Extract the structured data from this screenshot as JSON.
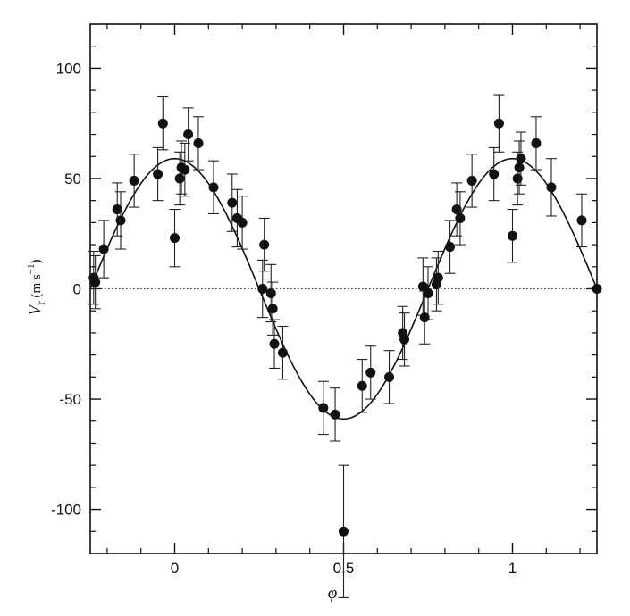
{
  "chart_data": {
    "type": "scatter",
    "title": "",
    "xlabel": "φ",
    "ylabel": {
      "symbol": "V",
      "subscript": "r",
      "unit_open": " (m s",
      "unit_exp": "−1",
      "unit_close": ")"
    },
    "xlim": [
      -0.25,
      1.25
    ],
    "ylim": [
      -120,
      120
    ],
    "x_ticks": [
      {
        "value": 0,
        "label": "0"
      },
      {
        "value": 0.5,
        "label": "0.5"
      },
      {
        "value": 1,
        "label": "1"
      }
    ],
    "y_ticks": [
      {
        "value": 100,
        "label": "100"
      },
      {
        "value": 50,
        "label": "50"
      },
      {
        "value": 0,
        "label": "0"
      },
      {
        "value": -50,
        "label": "-50"
      },
      {
        "value": -100,
        "label": "-100"
      }
    ],
    "grid": false,
    "reference_line": {
      "y": 0,
      "style": "dotted"
    },
    "fit_curve": {
      "amplitude": 59,
      "period": 1,
      "zero_phase": 0.25
    },
    "points": [
      {
        "x": -0.24,
        "y": 5,
        "err": 12
      },
      {
        "x": -0.235,
        "y": 3,
        "err": 12
      },
      {
        "x": -0.21,
        "y": 18,
        "err": 13
      },
      {
        "x": -0.17,
        "y": 36,
        "err": 12
      },
      {
        "x": -0.16,
        "y": 31,
        "err": 13
      },
      {
        "x": -0.12,
        "y": 49,
        "err": 12
      },
      {
        "x": -0.05,
        "y": 52,
        "err": 12
      },
      {
        "x": -0.035,
        "y": 75,
        "err": 12
      },
      {
        "x": 0.0,
        "y": 23,
        "err": 13
      },
      {
        "x": 0.015,
        "y": 50,
        "err": 12
      },
      {
        "x": 0.02,
        "y": 55,
        "err": 12
      },
      {
        "x": 0.03,
        "y": 54,
        "err": 12
      },
      {
        "x": 0.04,
        "y": 70,
        "err": 12
      },
      {
        "x": 0.07,
        "y": 66,
        "err": 12
      },
      {
        "x": 0.115,
        "y": 46,
        "err": 12
      },
      {
        "x": 0.17,
        "y": 39,
        "err": 13
      },
      {
        "x": 0.185,
        "y": 32,
        "err": 13
      },
      {
        "x": 0.2,
        "y": 30,
        "err": 12
      },
      {
        "x": 0.26,
        "y": 0,
        "err": 13
      },
      {
        "x": 0.265,
        "y": 20,
        "err": 12
      },
      {
        "x": 0.285,
        "y": -2,
        "err": 13
      },
      {
        "x": 0.29,
        "y": -9,
        "err": 12
      },
      {
        "x": 0.295,
        "y": -25,
        "err": 11
      },
      {
        "x": 0.32,
        "y": -29,
        "err": 12
      },
      {
        "x": 0.44,
        "y": -54,
        "err": 12
      },
      {
        "x": 0.475,
        "y": -57,
        "err": 12
      },
      {
        "x": 0.5,
        "y": -110,
        "err": 30
      },
      {
        "x": 0.555,
        "y": -44,
        "err": 12
      },
      {
        "x": 0.58,
        "y": -38,
        "err": 12
      },
      {
        "x": 0.635,
        "y": -40,
        "err": 12
      },
      {
        "x": 0.675,
        "y": -20,
        "err": 12
      },
      {
        "x": 0.68,
        "y": -23,
        "err": 12
      },
      {
        "x": 0.735,
        "y": 1,
        "err": 13
      },
      {
        "x": 0.74,
        "y": -13,
        "err": 12
      },
      {
        "x": 0.75,
        "y": -2,
        "err": 12
      },
      {
        "x": 0.775,
        "y": 2,
        "err": 12
      },
      {
        "x": 0.78,
        "y": 5,
        "err": 12
      },
      {
        "x": 0.815,
        "y": 19,
        "err": 12
      },
      {
        "x": 0.835,
        "y": 36,
        "err": 12
      },
      {
        "x": 0.845,
        "y": 32,
        "err": 12
      },
      {
        "x": 0.88,
        "y": 49,
        "err": 12
      },
      {
        "x": 0.945,
        "y": 52,
        "err": 12
      },
      {
        "x": 0.96,
        "y": 75,
        "err": 13
      },
      {
        "x": 1.0,
        "y": 24,
        "err": 12
      },
      {
        "x": 1.015,
        "y": 50,
        "err": 12
      },
      {
        "x": 1.02,
        "y": 55,
        "err": 12
      },
      {
        "x": 1.025,
        "y": 59,
        "err": 12
      },
      {
        "x": 1.07,
        "y": 66,
        "err": 12
      },
      {
        "x": 1.115,
        "y": 46,
        "err": 13
      },
      {
        "x": 1.205,
        "y": 31,
        "err": 12
      },
      {
        "x": 1.25,
        "y": 0,
        "err": 0
      }
    ]
  }
}
